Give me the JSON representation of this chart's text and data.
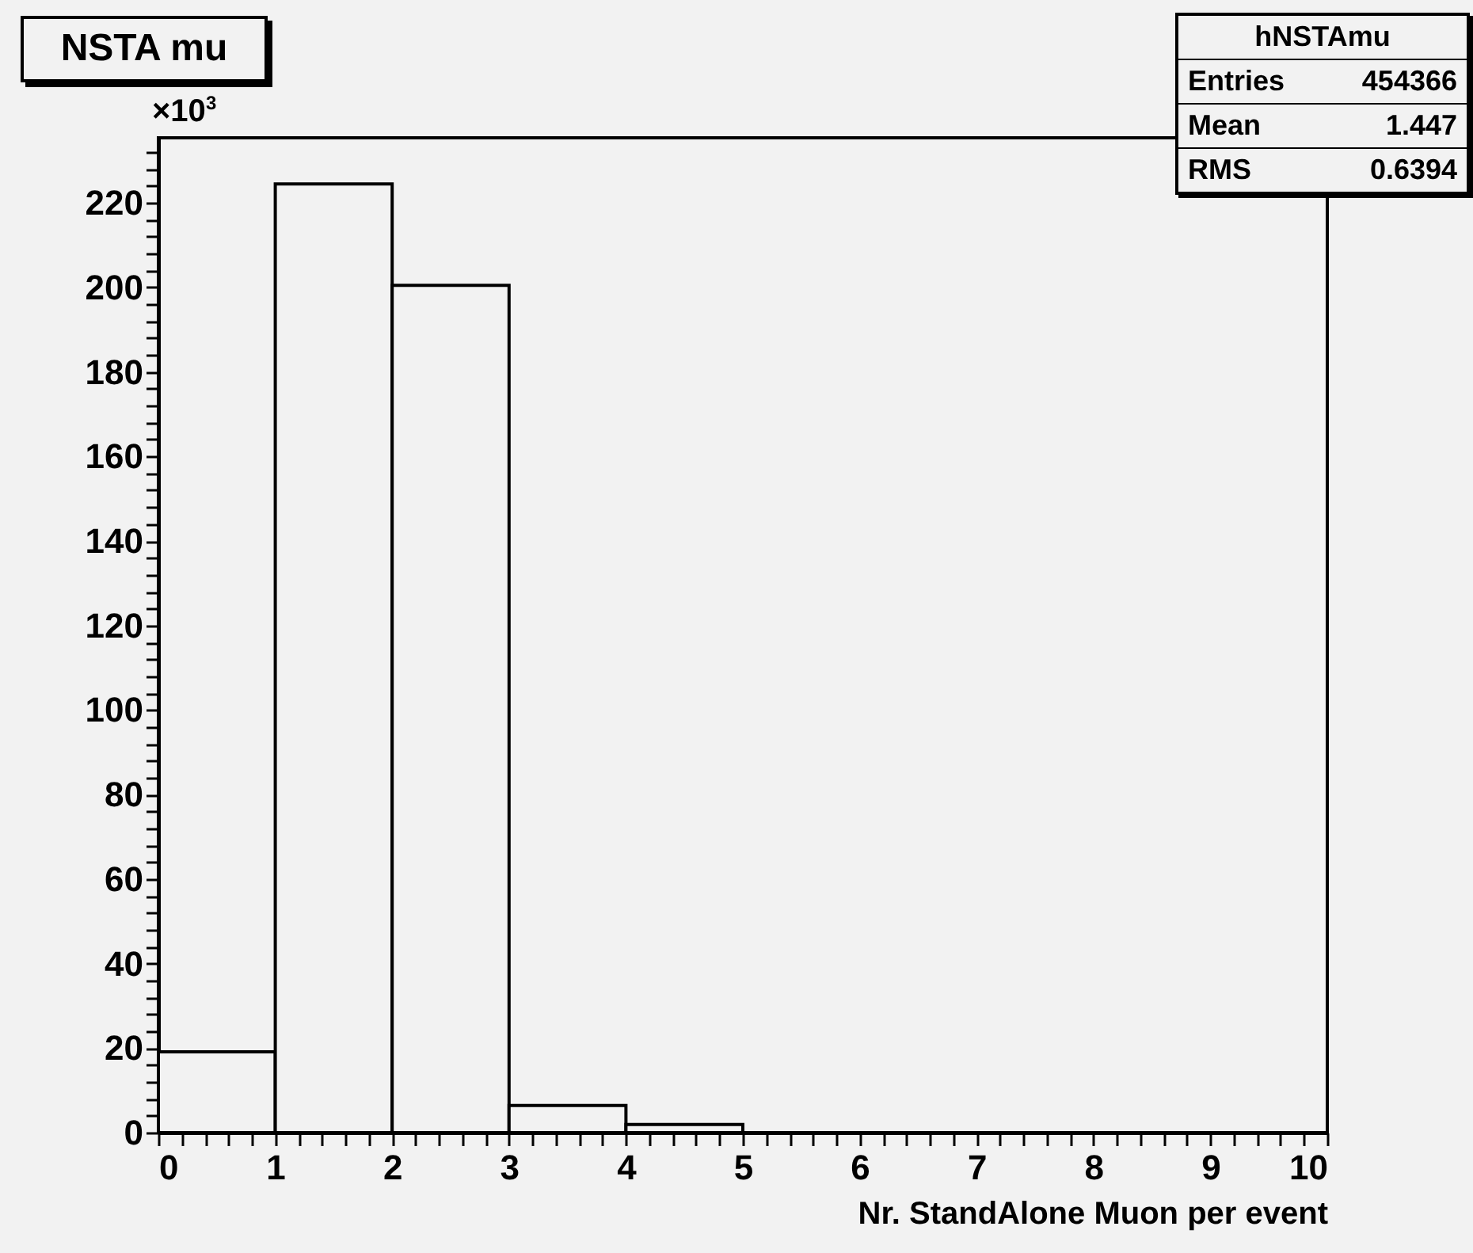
{
  "chart_data": {
    "type": "histogram",
    "title": "NSTA mu",
    "xlabel": "Nr. StandAlone Muon per event",
    "annotations": [
      "×10$^{3}$",
      "hNSTAmu",
      "Entries",
      "454366",
      "Mean",
      "1.447",
      "RMS",
      "0.6394"
    ],
    "bins": [
      0,
      1,
      2,
      3,
      4,
      5,
      6,
      7,
      8,
      9,
      10
    ],
    "values": [
      19.1,
      224.5,
      200.5,
      6.4,
      1.9,
      0,
      0,
      0,
      0,
      0
    ],
    "color": "#000000",
    "xlim": [
      0,
      10
    ],
    "ylim": [
      0,
      235.4
    ],
    "xticks": [
      0,
      {
        "value": 0.2,
        "label": null
      },
      {
        "value": 0.4,
        "label": null
      },
      {
        "value": 0.6,
        "label": null
      },
      {
        "value": 0.8,
        "label": null
      },
      1,
      {
        "value": 1.2,
        "label": null
      },
      {
        "value": 1.4,
        "label": null
      },
      {
        "value": 1.6,
        "label": null
      },
      {
        "value": 1.8,
        "label": null
      },
      2,
      {
        "value": 2.2,
        "label": null
      },
      {
        "value": 2.4,
        "label": null
      },
      {
        "value": 2.6,
        "label": null
      },
      {
        "value": 2.8,
        "label": null
      },
      3,
      {
        "value": 3.2,
        "label": null
      },
      {
        "value": 3.4,
        "label": null
      },
      {
        "value": 3.6,
        "label": null
      },
      {
        "value": 3.8,
        "label": null
      },
      4,
      {
        "value": 4.2,
        "label": null
      },
      {
        "value": 4.4,
        "label": null
      },
      {
        "value": 4.6,
        "label": null
      },
      {
        "value": 4.8,
        "label": null
      },
      5,
      {
        "value": 5.2,
        "label": null
      },
      {
        "value": 5.4,
        "label": null
      },
      {
        "value": 5.6,
        "label": null
      },
      {
        "value": 5.8,
        "label": null
      },
      6,
      {
        "value": 6.2,
        "label": null
      },
      {
        "value": 6.4,
        "label": null
      },
      {
        "value": 6.6,
        "label": null
      },
      {
        "value": 6.8,
        "label": null
      },
      7,
      {
        "value": 7.2,
        "label": null
      },
      {
        "value": 7.4,
        "label": null
      },
      {
        "value": 7.6,
        "label": null
      },
      {
        "value": 7.8,
        "label": null
      },
      8,
      {
        "value": 8.2,
        "label": null
      },
      {
        "value": 8.4,
        "label": null
      },
      {
        "value": 8.6,
        "label": null
      },
      {
        "value": 8.8,
        "label": null
      },
      9,
      {
        "value": 9.2,
        "label": null
      },
      {
        "value": 9.4,
        "label": null
      },
      {
        "value": 9.6,
        "label": null
      },
      {
        "value": 9.8,
        "label": null
      },
      10
    ],
    "yticks": [
      0,
      {
        "value": 4,
        "label": null
      },
      {
        "value": 8,
        "label": null
      },
      {
        "value": 12,
        "label": null
      },
      {
        "value": 16,
        "label": null
      },
      20,
      {
        "value": 24,
        "label": null
      },
      {
        "value": 28,
        "label": null
      },
      {
        "value": 32,
        "label": null
      },
      {
        "value": 36,
        "label": null
      },
      40,
      {
        "value": 44,
        "label": null
      },
      {
        "value": 48,
        "label": null
      },
      {
        "value": 52,
        "label": null
      },
      {
        "value": 56,
        "label": null
      },
      60,
      {
        "value": 64,
        "label": null
      },
      {
        "value": 68,
        "label": null
      },
      {
        "value": 72,
        "label": null
      },
      {
        "value": 76,
        "label": null
      },
      80,
      {
        "value": 84,
        "label": null
      },
      {
        "value": 88,
        "label": null
      },
      {
        "value": 92,
        "label": null
      },
      {
        "value": 96,
        "label": null
      },
      100,
      {
        "value": 104,
        "label": null
      },
      {
        "value": 108,
        "label": null
      },
      {
        "value": 112,
        "label": null
      },
      {
        "value": 116,
        "label": null
      },
      120,
      {
        "value": 124,
        "label": null
      },
      {
        "value": 128,
        "label": null
      },
      {
        "value": 132,
        "label": null
      },
      {
        "value": 136,
        "label": null
      },
      140,
      {
        "value": 144,
        "label": null
      },
      {
        "value": 148,
        "label": null
      },
      {
        "value": 152,
        "label": null
      },
      {
        "value": 156,
        "label": null
      },
      160,
      {
        "value": 164,
        "label": null
      },
      {
        "value": 168,
        "label": null
      },
      {
        "value": 172,
        "label": null
      },
      {
        "value": 176,
        "label": null
      },
      180,
      {
        "value": 184,
        "label": null
      },
      {
        "value": 188,
        "label": null
      },
      {
        "value": 192,
        "label": null
      },
      {
        "value": 196,
        "label": null
      },
      200,
      {
        "value": 204,
        "label": null
      },
      {
        "value": 208,
        "label": null
      },
      {
        "value": 212,
        "label": null
      },
      {
        "value": 216,
        "label": null
      },
      220,
      {
        "value": 224,
        "label": null
      },
      {
        "value": 228,
        "label": null
      },
      {
        "value": 232,
        "label": null
      }
    ]
  }
}
